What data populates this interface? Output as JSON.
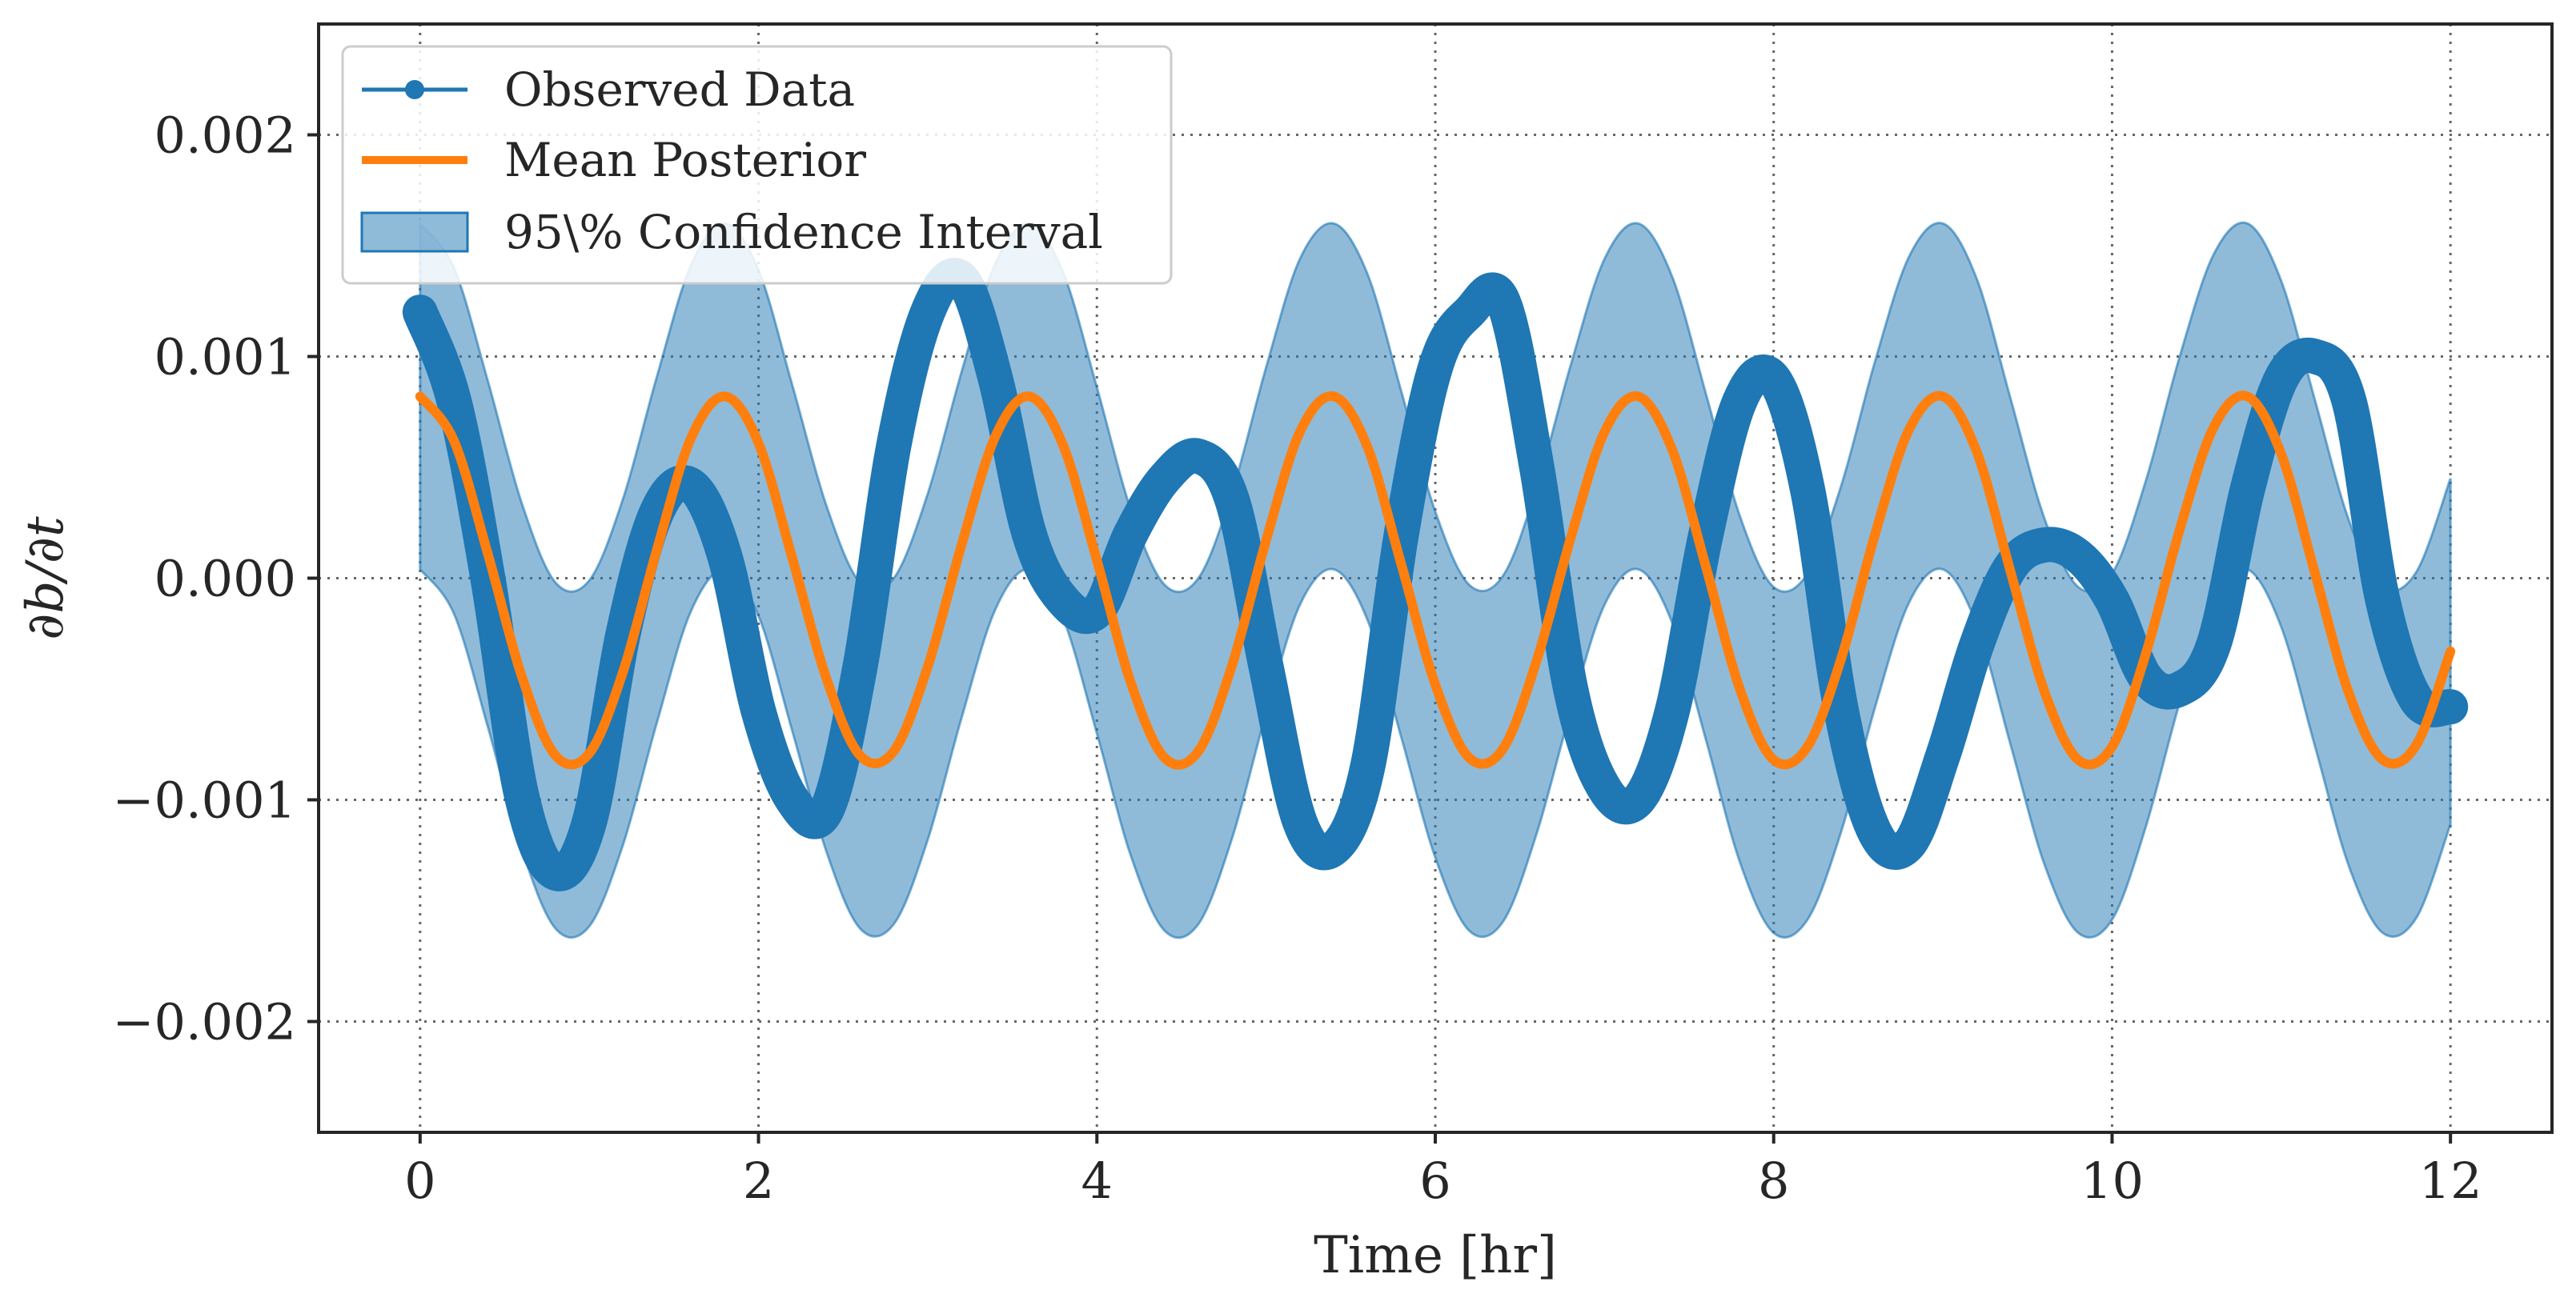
{
  "chart_data": {
    "type": "line",
    "xlabel": "Time [hr]",
    "ylabel": "∂b/∂t",
    "xlim": [
      -0.6,
      12.6
    ],
    "ylim": [
      -0.0025,
      0.0025
    ],
    "xticks": [
      0,
      2,
      4,
      6,
      8,
      10,
      12
    ],
    "xtick_labels": [
      "0",
      "2",
      "4",
      "6",
      "8",
      "10",
      "12"
    ],
    "yticks": [
      -0.002,
      -0.001,
      0.0,
      0.001,
      0.002
    ],
    "ytick_labels": [
      "−0.002",
      "−0.001",
      "0.000",
      "0.001",
      "0.002"
    ],
    "grid": true,
    "legend_position": "top-left",
    "series": [
      {
        "name": "Observed Data",
        "style": "line-marker",
        "color": "#1f77b4",
        "x": [
          0,
          0.2,
          0.4,
          0.6,
          0.8,
          1.0,
          1.2,
          1.4,
          1.6,
          1.8,
          2.0,
          2.2,
          2.4,
          2.6,
          2.8,
          3.0,
          3.2,
          3.4,
          3.6,
          3.8,
          4.0,
          4.2,
          4.4,
          4.6,
          4.8,
          5.0,
          5.2,
          5.4,
          5.6,
          5.8,
          6.0,
          6.2,
          6.4,
          6.6,
          6.8,
          7.0,
          7.2,
          7.4,
          7.6,
          7.8,
          8.0,
          8.2,
          8.4,
          8.6,
          8.8,
          9.0,
          9.2,
          9.4,
          9.6,
          9.8,
          10.0,
          10.2,
          10.4,
          10.6,
          10.8,
          11.0,
          11.2,
          11.4,
          11.6,
          11.8,
          12.0
        ],
        "y": [
          0.0012,
          0.0008,
          0.0,
          -0.00098,
          -0.00133,
          -0.0011,
          -0.00025,
          0.0003,
          0.00042,
          0.0001,
          -0.0006,
          -0.001,
          -0.00105,
          -0.0004,
          0.0006,
          0.0012,
          0.00135,
          0.0009,
          0.0002,
          -0.0001,
          -0.00015,
          0.0002,
          0.00045,
          0.00055,
          0.00035,
          -0.0004,
          -0.0011,
          -0.00122,
          -0.00085,
          0.0002,
          0.00095,
          0.0012,
          0.00125,
          0.0005,
          -0.0005,
          -0.00095,
          -0.001,
          -0.0006,
          0.0002,
          0.0008,
          0.0009,
          0.0004,
          -0.0006,
          -0.00115,
          -0.0012,
          -0.0008,
          -0.0003,
          5e-05,
          0.00015,
          0.0001,
          -0.0001,
          -0.00045,
          -0.0005,
          -0.0003,
          0.0004,
          0.0009,
          0.001,
          0.0008,
          -0.0001,
          -0.00055,
          -0.00058
        ]
      },
      {
        "name": "Mean Posterior",
        "style": "line",
        "color": "#ff7f0e",
        "x": [
          0,
          0.2,
          0.4,
          0.6,
          0.8,
          1.0,
          1.2,
          1.4,
          1.6,
          1.8,
          2.0,
          2.2,
          2.4,
          2.6,
          2.8,
          3.0,
          3.2,
          3.4,
          3.6,
          3.8,
          4.0,
          4.2,
          4.4,
          4.6,
          4.8,
          5.0,
          5.2,
          5.4,
          5.6,
          5.8,
          6.0,
          6.2,
          6.4,
          6.6,
          6.8,
          7.0,
          7.2,
          7.4,
          7.6,
          7.8,
          8.0,
          8.2,
          8.4,
          8.6,
          8.8,
          9.0,
          9.2,
          9.4,
          9.6,
          9.8,
          10.0,
          10.2,
          10.4,
          10.6,
          10.8,
          11.0,
          11.2,
          11.4,
          11.6,
          11.8,
          12.0
        ],
        "y": [
          0.00082,
          0.00062,
          0.00011,
          -0.00044,
          -0.0008,
          -0.00079,
          -0.00042,
          0.00013,
          0.00063,
          0.00082,
          0.00061,
          9e-05,
          -0.00045,
          -0.0008,
          -0.00078,
          -0.0004,
          0.00015,
          0.00064,
          0.00082,
          0.0006,
          8e-05,
          -0.00047,
          -0.00081,
          -0.00078,
          -0.00039,
          0.00017,
          0.00066,
          0.00082,
          0.00059,
          6e-05,
          -0.00048,
          -0.00081,
          -0.00077,
          -0.00037,
          0.00018,
          0.00066,
          0.00082,
          0.00058,
          5e-05,
          -0.0005,
          -0.00082,
          -0.00076,
          -0.00036,
          0.0002,
          0.00067,
          0.00082,
          0.00057,
          3e-05,
          -0.00051,
          -0.00082,
          -0.00076,
          -0.00034,
          0.00022,
          0.00068,
          0.00082,
          0.00056,
          2e-05,
          -0.00052,
          -0.00082,
          -0.00075,
          -0.00033
        ]
      }
    ],
    "band": {
      "name": "95\\% Confidence Interval",
      "color": "#1f77b4",
      "opacity": 0.5,
      "half_width": 0.00078,
      "center_series": "Mean Posterior"
    }
  }
}
